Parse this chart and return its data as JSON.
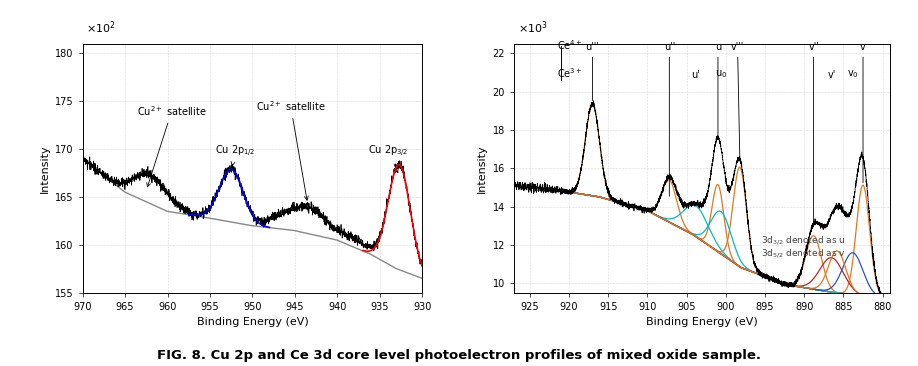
{
  "fig_width": 9.18,
  "fig_height": 3.66,
  "fig_dpi": 100,
  "background_color": "#ffffff",
  "caption": "FIG. 8. Cu 2p and Ce 3d core level photoelectron profiles of mixed oxide sample.",
  "caption_fontsize": 9.5,
  "left_plot": {
    "xlabel": "Binding Energy (eV)",
    "ylabel": "Intensity",
    "xmin": 930,
    "xmax": 970,
    "ymin": 155,
    "ymax": 181,
    "yticks": [
      155,
      160,
      165,
      170,
      175,
      180
    ],
    "xticks": [
      930,
      935,
      940,
      945,
      950,
      955,
      960,
      965,
      970
    ],
    "xticklabels": [
      "930",
      "935",
      "940",
      "945",
      "950",
      "955",
      "960",
      "965",
      "970"
    ],
    "scale_label": "$\\times 10^2$"
  },
  "right_plot": {
    "xlabel": "Binding Energy (eV)",
    "ylabel": "Intensity",
    "xmin": 879,
    "xmax": 927,
    "ymin": 9.5,
    "ymax": 22.5,
    "yticks": [
      10,
      12,
      14,
      16,
      18,
      20,
      22
    ],
    "xticks": [
      880,
      885,
      890,
      895,
      900,
      905,
      910,
      915,
      920,
      925
    ],
    "xticklabels": [
      "880",
      "885",
      "890",
      "895",
      "900",
      "905",
      "910",
      "915",
      "920",
      "925"
    ],
    "scale_label": "$\\times 10^3$",
    "legend_text1": "3d$_{3/2}$ denoted as u",
    "legend_text2": "3d$_{5/2}$ denoted as v"
  }
}
